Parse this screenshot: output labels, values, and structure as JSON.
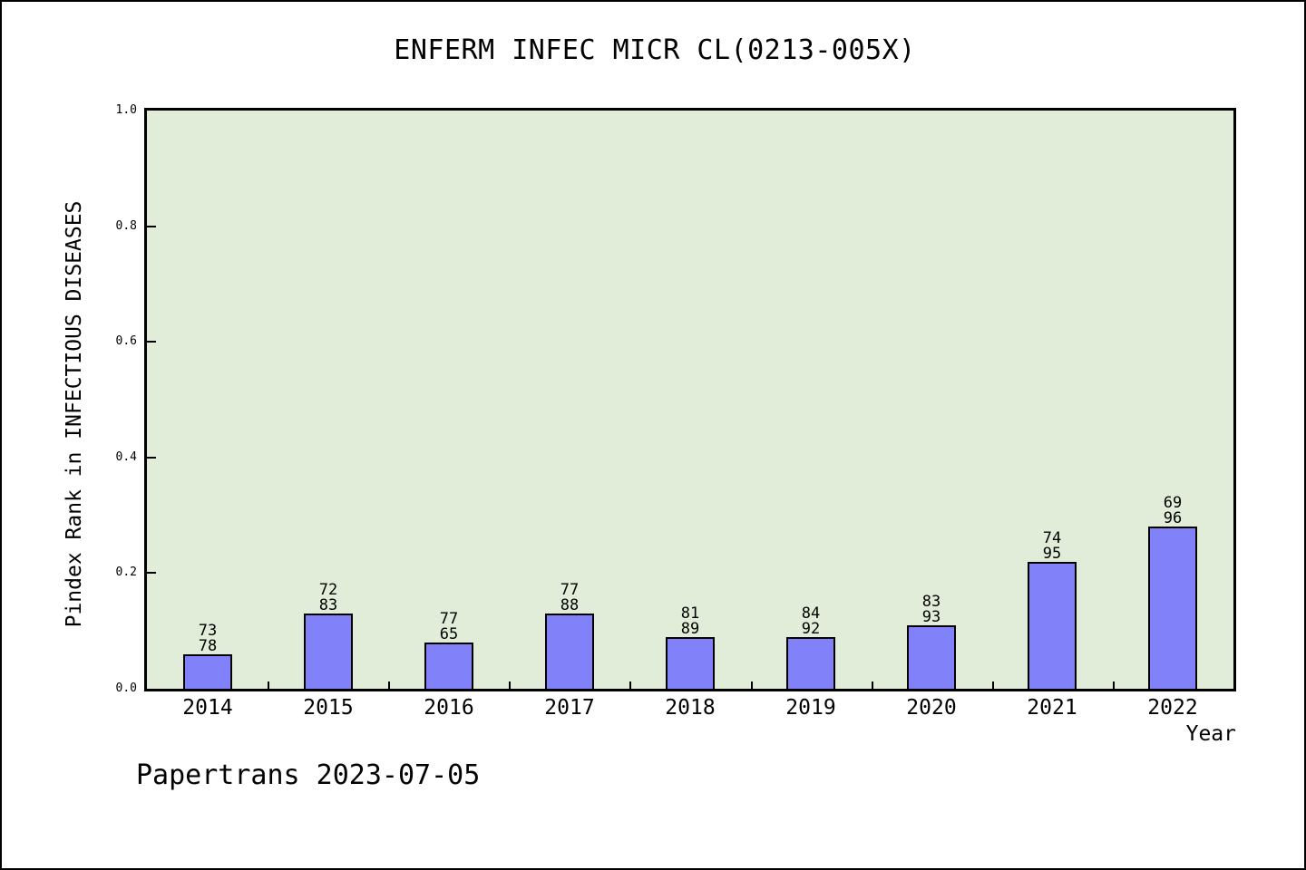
{
  "page": {
    "footer": "Papertrans 2023-07-05"
  },
  "chart_data": {
    "type": "bar",
    "title": "ENFERM INFEC MICR CL(0213-005X)",
    "xlabel": "Year",
    "ylabel": "Pindex Rank in INFECTIOUS DISEASES",
    "categories": [
      "2014",
      "2015",
      "2016",
      "2017",
      "2018",
      "2019",
      "2020",
      "2021",
      "2022"
    ],
    "values": [
      0.06,
      0.13,
      0.08,
      0.13,
      0.09,
      0.09,
      0.11,
      0.22,
      0.28
    ],
    "bar_labels": [
      [
        "73",
        "78"
      ],
      [
        "72",
        "83"
      ],
      [
        "77",
        "65"
      ],
      [
        "77",
        "88"
      ],
      [
        "81",
        "89"
      ],
      [
        "84",
        "92"
      ],
      [
        "83",
        "93"
      ],
      [
        "74",
        "95"
      ],
      [
        "69",
        "96"
      ]
    ],
    "ylim": [
      0.0,
      1.0
    ],
    "yticks": [
      0.0,
      0.2,
      0.4,
      0.6,
      0.8,
      1.0
    ],
    "grid": false,
    "legend_position": "none",
    "colors": {
      "bar_fill": "#8181fa",
      "bar_border": "#000000",
      "plot_bg": "#e1edd8",
      "page_bg": "#ffffff",
      "text": "#000000"
    }
  }
}
